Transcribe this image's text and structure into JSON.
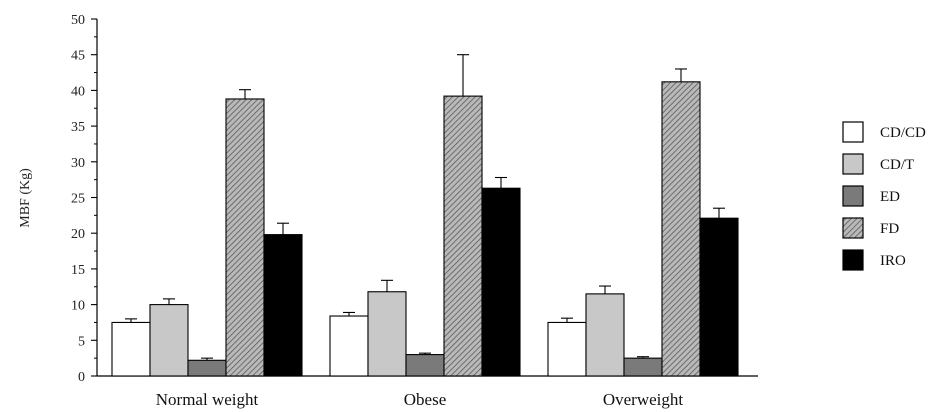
{
  "chart_data": {
    "type": "bar",
    "ylabel": "MBF (Kg)",
    "ylim": [
      0,
      50
    ],
    "yticks": [
      "0",
      "5",
      "10",
      "15",
      "20",
      "25",
      "30",
      "35",
      "40",
      "45",
      "50"
    ],
    "categories": [
      "Normal weight",
      "Obese",
      "Overweight"
    ],
    "legend_position": "right",
    "series": [
      {
        "name": "CD/CD",
        "values": [
          7.5,
          8.4,
          7.5
        ],
        "errors": [
          0.5,
          0.5,
          0.6
        ],
        "fill": "#ffffff",
        "pattern": "none"
      },
      {
        "name": "CD/T",
        "values": [
          10.0,
          11.8,
          11.5
        ],
        "errors": [
          0.8,
          1.6,
          1.1
        ],
        "fill": "#c8c8c8",
        "pattern": "none"
      },
      {
        "name": "ED",
        "values": [
          2.2,
          3.0,
          2.5
        ],
        "errors": [
          0.3,
          0.2,
          0.2
        ],
        "fill": "#7a7a7a",
        "pattern": "none"
      },
      {
        "name": "FD",
        "values": [
          38.8,
          39.2,
          41.2
        ],
        "errors": [
          1.3,
          5.8,
          1.8
        ],
        "fill": "#a9a9a9",
        "pattern": "diagonal-hatch"
      },
      {
        "name": "IRO",
        "values": [
          19.8,
          26.3,
          22.1
        ],
        "errors": [
          1.6,
          1.5,
          1.4
        ],
        "fill": "#000000",
        "pattern": "none"
      }
    ]
  }
}
